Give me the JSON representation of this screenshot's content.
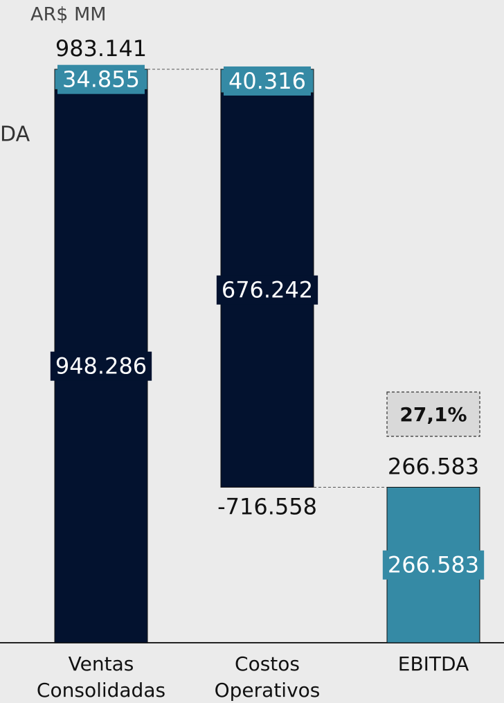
{
  "chart_data": {
    "type": "waterfall",
    "unit": "AR$ MM",
    "side_label": "DA",
    "categories": [
      [
        "Ventas",
        "Consolidadas"
      ],
      [
        "Costos",
        "Operativos"
      ],
      [
        "EBITDA"
      ]
    ],
    "bars": [
      {
        "kind": "delta",
        "total": 983141,
        "total_label": "983.141",
        "segments": [
          948286,
          34855
        ],
        "value_labels": [
          "948.286",
          "34.855"
        ],
        "colors": [
          "#03122f",
          "#358aa5"
        ]
      },
      {
        "kind": "delta",
        "total": -716558,
        "total_label": "-716.558",
        "segments": [
          676242,
          40316
        ],
        "value_labels": [
          "676.242",
          "40.316"
        ],
        "colors": [
          "#03122f",
          "#358aa5"
        ]
      },
      {
        "kind": "total",
        "total": 266583,
        "total_label": "266.583",
        "segments": [
          266583
        ],
        "value_labels": [
          "266.583"
        ],
        "colors": [
          "#358aa5"
        ]
      }
    ],
    "margin": {
      "value": 27.1,
      "label": "27,1%"
    },
    "ylim": [
      0,
      983141
    ]
  }
}
